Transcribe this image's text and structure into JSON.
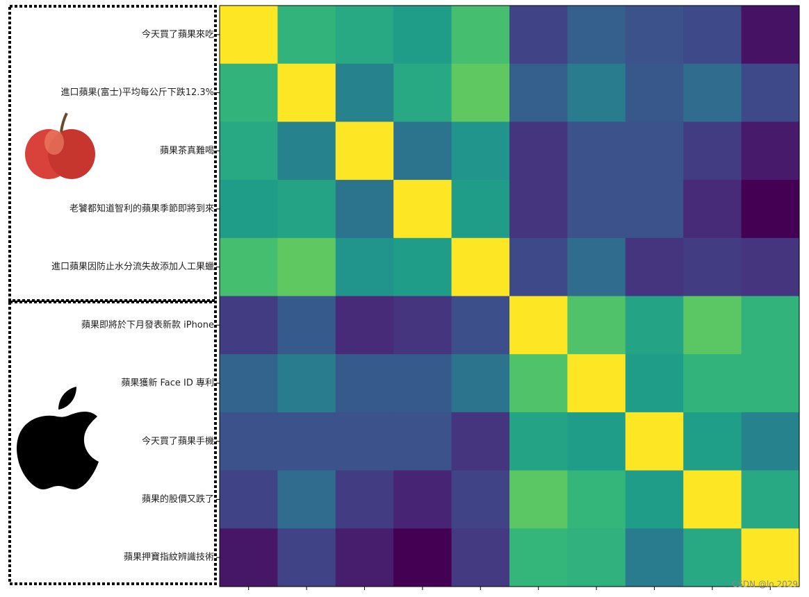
{
  "chart_data": {
    "type": "heatmap",
    "categories": [
      "今天買了蘋果來吃",
      "進口蘋果(富士)平均每公斤下跌12.3%",
      "蘋果茶真難喝",
      "老饕都知道智利的蘋果季節即將到來",
      "進口蘋果因防止水分流失故添加人工果蠟",
      "蘋果即將於下月發表新款 iPhone",
      "蘋果獲新 Face ID 專利",
      "今天買了蘋果手機",
      "蘋果的股價又跌了",
      "蘋果押寶指紋辨識技術"
    ],
    "colormap": "viridis",
    "zlim": [
      0,
      1
    ],
    "values": [
      [
        1,
        0.65,
        0.6,
        0.55,
        0.7,
        0.2,
        0.3,
        0.25,
        0.22,
        0.05
      ],
      [
        0.65,
        1,
        0.45,
        0.6,
        0.75,
        0.3,
        0.42,
        0.27,
        0.35,
        0.22
      ],
      [
        0.6,
        0.45,
        1,
        0.38,
        0.52,
        0.15,
        0.25,
        0.25,
        0.18,
        0.07
      ],
      [
        0.55,
        0.58,
        0.38,
        1,
        0.55,
        0.15,
        0.25,
        0.25,
        0.12,
        0
      ],
      [
        0.7,
        0.75,
        0.52,
        0.55,
        1,
        0.22,
        0.35,
        0.15,
        0.18,
        0.15
      ],
      [
        0.18,
        0.28,
        0.12,
        0.15,
        0.24,
        1,
        0.72,
        0.58,
        0.74,
        0.65
      ],
      [
        0.32,
        0.42,
        0.28,
        0.28,
        0.38,
        0.72,
        1,
        0.55,
        0.65,
        0.65
      ],
      [
        0.25,
        0.25,
        0.25,
        0.25,
        0.15,
        0.58,
        0.55,
        1,
        0.56,
        0.45
      ],
      [
        0.2,
        0.35,
        0.18,
        0.1,
        0.2,
        0.74,
        0.66,
        0.55,
        1,
        0.6
      ],
      [
        0.06,
        0.2,
        0.08,
        0,
        0.17,
        0.66,
        0.64,
        0.42,
        0.6,
        1
      ]
    ],
    "watermark": "CSDN @lo 2029"
  }
}
